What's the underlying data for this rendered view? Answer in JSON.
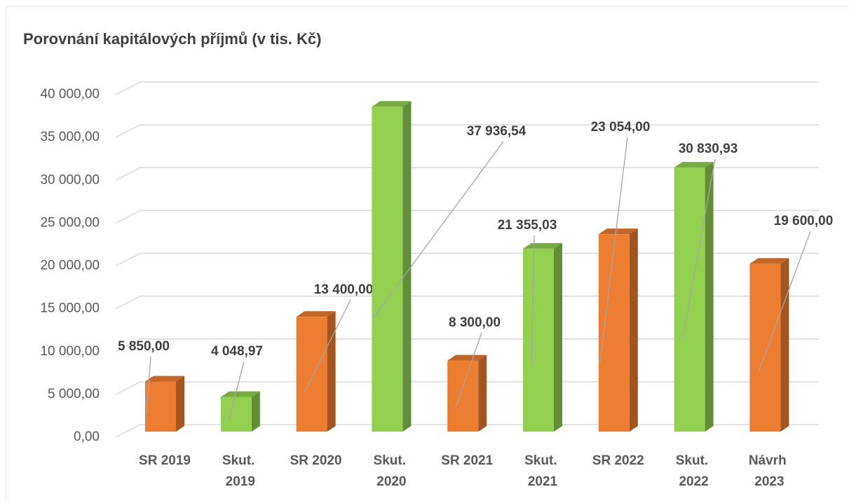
{
  "chart_data": {
    "type": "bar3d",
    "title": "Porovnání kapitálových příjmů (v tis. Kč)",
    "categories": [
      "SR 2019",
      "Skut. 2019",
      "SR 2020",
      "Skut. 2020",
      "SR 2021",
      "Skut. 2021",
      "SR 2022",
      "Skut. 2022",
      "Návrh 2023"
    ],
    "values": [
      5850,
      4048.97,
      13400,
      37936.54,
      8300,
      21355.03,
      23054,
      30830.93,
      19600
    ],
    "value_labels": [
      "5 850,00",
      "4 048,97",
      "13 400,00",
      "37 936,54",
      "8 300,00",
      "21 355,03",
      "23 054,00",
      "30 830,93",
      "19 600,00"
    ],
    "colors": [
      "#ed7d31",
      "#92d050",
      "#ed7d31",
      "#92d050",
      "#ed7d31",
      "#92d050",
      "#ed7d31",
      "#92d050",
      "#ed7d31"
    ],
    "ylim": [
      0,
      40000
    ],
    "yticks": [
      {
        "value": 0,
        "label": "0,00"
      },
      {
        "value": 5000,
        "label": "5 000,00"
      },
      {
        "value": 10000,
        "label": "10 000,00"
      },
      {
        "value": 15000,
        "label": "15 000,00"
      },
      {
        "value": 20000,
        "label": "20 000,00"
      },
      {
        "value": 25000,
        "label": "25 000,00"
      },
      {
        "value": 30000,
        "label": "30 000,00"
      },
      {
        "value": 35000,
        "label": "35 000,00"
      },
      {
        "value": 40000,
        "label": "40 000,00"
      }
    ],
    "grid": true
  }
}
